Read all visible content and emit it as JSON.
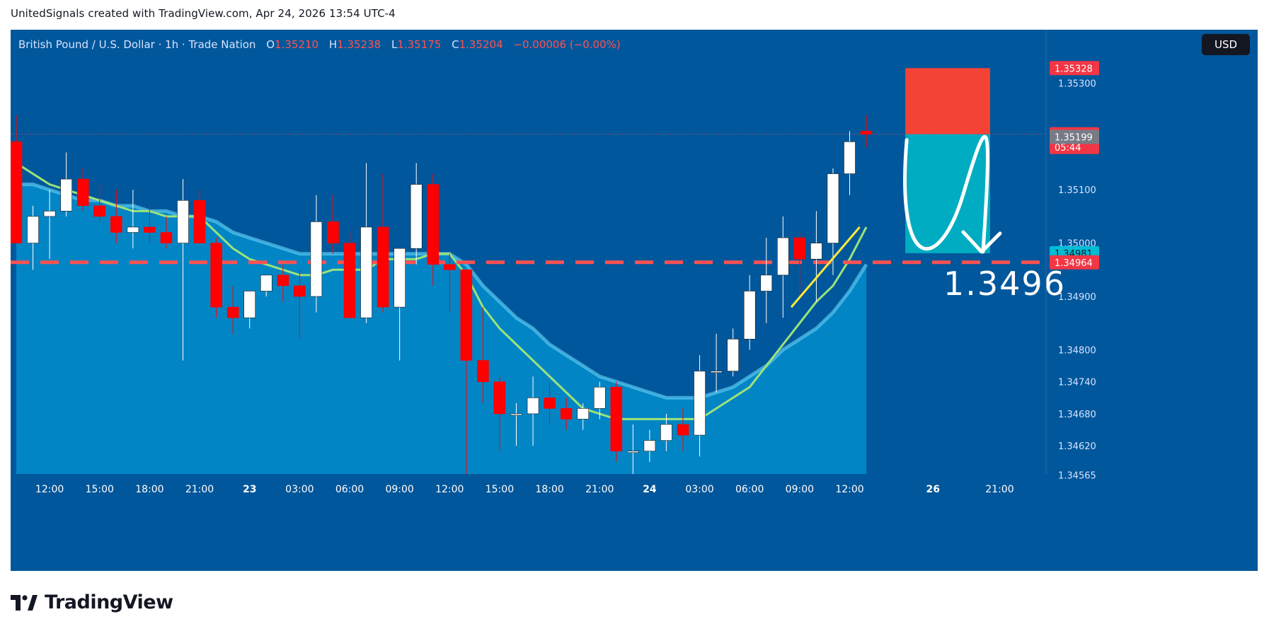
{
  "header": {
    "title": "UnitedSignals created with TradingView.com, Apr 24, 2026 13:54 UTC-4"
  },
  "legend": {
    "symbol": "British Pound / U.S. Dollar · 1h · Trade Nation",
    "open_label": "O",
    "open": "1.35210",
    "high_label": "H",
    "high": "1.35238",
    "low_label": "L",
    "low": "1.35175",
    "close_label": "C",
    "close": "1.35204",
    "change": "−0.00006 (−0.00%)"
  },
  "currency_button": "USD",
  "footer": {
    "brand": "TradingView"
  },
  "annotation": {
    "target_label": "1.3496"
  },
  "colors": {
    "background": "#01579b",
    "area_fill": "#0288c7",
    "bull": "#ffffff",
    "bear": "#ff0000",
    "ema_slow": "#5ac8ef",
    "ema_fast": "#9be37a",
    "projection": "#ffeb3b",
    "stop_zone": "#f44336",
    "target_zone": "#00acc1",
    "target_line": "#ff5252"
  },
  "chart_data": {
    "type": "candlestick",
    "symbol": "British Pound / U.S. Dollar",
    "interval": "1h",
    "ylim": [
      1.3453,
      1.354
    ],
    "price_ticks": [
      "1.35300",
      "1.35100",
      "1.35000",
      "1.34900",
      "1.34800",
      "1.34740",
      "1.34680",
      "1.34620",
      "1.34565"
    ],
    "price_tick_values": [
      1.353,
      1.351,
      1.35,
      1.349,
      1.348,
      1.3474,
      1.3468,
      1.3462,
      1.34565
    ],
    "time_ticks": [
      {
        "i": 2,
        "label": "12:00",
        "bold": false
      },
      {
        "i": 5,
        "label": "15:00",
        "bold": false
      },
      {
        "i": 8,
        "label": "18:00",
        "bold": false
      },
      {
        "i": 11,
        "label": "21:00",
        "bold": false
      },
      {
        "i": 14,
        "label": "23",
        "bold": true
      },
      {
        "i": 17,
        "label": "03:00",
        "bold": false
      },
      {
        "i": 20,
        "label": "06:00",
        "bold": false
      },
      {
        "i": 23,
        "label": "09:00",
        "bold": false
      },
      {
        "i": 26,
        "label": "12:00",
        "bold": false
      },
      {
        "i": 29,
        "label": "15:00",
        "bold": false
      },
      {
        "i": 32,
        "label": "18:00",
        "bold": false
      },
      {
        "i": 35,
        "label": "21:00",
        "bold": false
      },
      {
        "i": 38,
        "label": "24",
        "bold": true
      },
      {
        "i": 41,
        "label": "03:00",
        "bold": false
      },
      {
        "i": 44,
        "label": "06:00",
        "bold": false
      },
      {
        "i": 47,
        "label": "09:00",
        "bold": false
      },
      {
        "i": 50,
        "label": "12:00",
        "bold": false
      },
      {
        "i": 55,
        "label": "26",
        "bold": true
      },
      {
        "i": 59,
        "label": "21:00",
        "bold": false
      }
    ],
    "candles": [
      {
        "o": 1.3519,
        "h": 1.3524,
        "l": 1.35,
        "c": 1.35
      },
      {
        "o": 1.35,
        "h": 1.3507,
        "l": 1.3495,
        "c": 1.3505
      },
      {
        "o": 1.3505,
        "h": 1.351,
        "l": 1.3497,
        "c": 1.3506
      },
      {
        "o": 1.3506,
        "h": 1.3517,
        "l": 1.3505,
        "c": 1.3512
      },
      {
        "o": 1.3512,
        "h": 1.3514,
        "l": 1.3506,
        "c": 1.3507
      },
      {
        "o": 1.3507,
        "h": 1.3511,
        "l": 1.3504,
        "c": 1.3505
      },
      {
        "o": 1.3505,
        "h": 1.351,
        "l": 1.35,
        "c": 1.3502
      },
      {
        "o": 1.3502,
        "h": 1.351,
        "l": 1.3499,
        "c": 1.3503
      },
      {
        "o": 1.3503,
        "h": 1.3507,
        "l": 1.35,
        "c": 1.3502
      },
      {
        "o": 1.3502,
        "h": 1.3505,
        "l": 1.3499,
        "c": 1.35
      },
      {
        "o": 1.35,
        "h": 1.3512,
        "l": 1.3478,
        "c": 1.3508
      },
      {
        "o": 1.3508,
        "h": 1.351,
        "l": 1.35,
        "c": 1.35
      },
      {
        "o": 1.35,
        "h": 1.3501,
        "l": 1.3486,
        "c": 1.3488
      },
      {
        "o": 1.3488,
        "h": 1.3492,
        "l": 1.3483,
        "c": 1.3486
      },
      {
        "o": 1.3486,
        "h": 1.3491,
        "l": 1.3484,
        "c": 1.3491
      },
      {
        "o": 1.3491,
        "h": 1.3494,
        "l": 1.349,
        "c": 1.3494
      },
      {
        "o": 1.3494,
        "h": 1.3496,
        "l": 1.3489,
        "c": 1.3492
      },
      {
        "o": 1.3492,
        "h": 1.3495,
        "l": 1.3482,
        "c": 1.349
      },
      {
        "o": 1.349,
        "h": 1.3509,
        "l": 1.3487,
        "c": 1.3504
      },
      {
        "o": 1.3504,
        "h": 1.3509,
        "l": 1.3498,
        "c": 1.35
      },
      {
        "o": 1.35,
        "h": 1.3502,
        "l": 1.3486,
        "c": 1.3486
      },
      {
        "o": 1.3486,
        "h": 1.3515,
        "l": 1.3485,
        "c": 1.3503
      },
      {
        "o": 1.3503,
        "h": 1.3513,
        "l": 1.3487,
        "c": 1.3488
      },
      {
        "o": 1.3488,
        "h": 1.3499,
        "l": 1.3478,
        "c": 1.3499
      },
      {
        "o": 1.3499,
        "h": 1.3515,
        "l": 1.3496,
        "c": 1.3511
      },
      {
        "o": 1.3511,
        "h": 1.3513,
        "l": 1.3492,
        "c": 1.3496
      },
      {
        "o": 1.3496,
        "h": 1.3498,
        "l": 1.3487,
        "c": 1.3495
      },
      {
        "o": 1.3495,
        "h": 1.3495,
        "l": 1.3454,
        "c": 1.3478
      },
      {
        "o": 1.3478,
        "h": 1.3488,
        "l": 1.347,
        "c": 1.3474
      },
      {
        "o": 1.3474,
        "h": 1.3475,
        "l": 1.3461,
        "c": 1.3468
      },
      {
        "o": 1.3468,
        "h": 1.347,
        "l": 1.3462,
        "c": 1.3468
      },
      {
        "o": 1.3468,
        "h": 1.3475,
        "l": 1.3462,
        "c": 1.3471
      },
      {
        "o": 1.3471,
        "h": 1.3474,
        "l": 1.3466,
        "c": 1.3469
      },
      {
        "o": 1.3469,
        "h": 1.3471,
        "l": 1.3465,
        "c": 1.3467
      },
      {
        "o": 1.3467,
        "h": 1.347,
        "l": 1.3465,
        "c": 1.3469
      },
      {
        "o": 1.3469,
        "h": 1.3474,
        "l": 1.3467,
        "c": 1.3473
      },
      {
        "o": 1.3473,
        "h": 1.3474,
        "l": 1.3459,
        "c": 1.3461
      },
      {
        "o": 1.3461,
        "h": 1.3466,
        "l": 1.3454,
        "c": 1.3461
      },
      {
        "o": 1.3461,
        "h": 1.3465,
        "l": 1.3459,
        "c": 1.3463
      },
      {
        "o": 1.3463,
        "h": 1.3468,
        "l": 1.3461,
        "c": 1.3466
      },
      {
        "o": 1.3466,
        "h": 1.3469,
        "l": 1.3461,
        "c": 1.3464
      },
      {
        "o": 1.3464,
        "h": 1.3479,
        "l": 1.346,
        "c": 1.3476
      },
      {
        "o": 1.3476,
        "h": 1.3483,
        "l": 1.3472,
        "c": 1.3476
      },
      {
        "o": 1.3476,
        "h": 1.3484,
        "l": 1.3475,
        "c": 1.3482
      },
      {
        "o": 1.3482,
        "h": 1.3494,
        "l": 1.348,
        "c": 1.3491
      },
      {
        "o": 1.3491,
        "h": 1.3501,
        "l": 1.3485,
        "c": 1.3494
      },
      {
        "o": 1.3494,
        "h": 1.3505,
        "l": 1.3486,
        "c": 1.3501
      },
      {
        "o": 1.3501,
        "h": 1.3502,
        "l": 1.349,
        "c": 1.3497
      },
      {
        "o": 1.3497,
        "h": 1.3506,
        "l": 1.3489,
        "c": 1.35
      },
      {
        "o": 1.35,
        "h": 1.3514,
        "l": 1.3494,
        "c": 1.3513
      },
      {
        "o": 1.3513,
        "h": 1.3521,
        "l": 1.3509,
        "c": 1.3519
      },
      {
        "o": 1.3521,
        "h": 1.3524,
        "l": 1.3518,
        "c": 1.35204
      }
    ],
    "ema_fast": [
      1.3515,
      1.3513,
      1.3511,
      1.351,
      1.3509,
      1.3508,
      1.3507,
      1.3506,
      1.3506,
      1.3505,
      1.3505,
      1.3505,
      1.3502,
      1.3499,
      1.3497,
      1.3496,
      1.3495,
      1.3494,
      1.3494,
      1.3495,
      1.3495,
      1.3495,
      1.3497,
      1.3497,
      1.3497,
      1.3498,
      1.3498,
      1.3494,
      1.3488,
      1.3484,
      1.3481,
      1.3478,
      1.3475,
      1.3472,
      1.3469,
      1.3468,
      1.3467,
      1.3467,
      1.3467,
      1.3467,
      1.3467,
      1.3467,
      1.3469,
      1.3471,
      1.3473,
      1.3477,
      1.3481,
      1.3485,
      1.3489,
      1.3492,
      1.3497,
      1.3503
    ],
    "ema_slow": [
      1.3511,
      1.3511,
      1.351,
      1.3509,
      1.3508,
      1.3508,
      1.3507,
      1.3507,
      1.3506,
      1.3506,
      1.3505,
      1.3505,
      1.3504,
      1.3502,
      1.3501,
      1.35,
      1.3499,
      1.3498,
      1.3498,
      1.3498,
      1.3498,
      1.3498,
      1.3498,
      1.3498,
      1.3498,
      1.3498,
      1.3498,
      1.3496,
      1.3492,
      1.3489,
      1.3486,
      1.3484,
      1.3481,
      1.3479,
      1.3477,
      1.3475,
      1.3474,
      1.3473,
      1.3472,
      1.3471,
      1.3471,
      1.3471,
      1.3472,
      1.3473,
      1.3475,
      1.3477,
      1.348,
      1.3482,
      1.3484,
      1.3487,
      1.3491,
      1.3496
    ],
    "projection_line": [
      {
        "i": 46.5,
        "y": 1.3488
      },
      {
        "i": 50.6,
        "y": 1.3503
      }
    ],
    "target_level": 1.34964,
    "last_close": 1.35204,
    "entry": 1.35199,
    "target_price": 1.34981,
    "stop_price": 1.35328,
    "position": {
      "i_start": 53,
      "i_end": 58,
      "stop": 1.35328,
      "entry": 1.35204,
      "target": 1.34981
    },
    "price_tags": [
      {
        "label": "1.35328",
        "value": 1.35328,
        "style": "red",
        "clip": true
      },
      {
        "label": "1.35204",
        "value": 1.35204,
        "style": "red",
        "sublabel": "05:44"
      },
      {
        "label": "1.35199",
        "value": 1.35199,
        "style": "gray"
      },
      {
        "label": "1.34981",
        "value": 1.34981,
        "style": "teal"
      },
      {
        "label": "1.34964",
        "value": 1.34964,
        "style": "red"
      }
    ]
  }
}
